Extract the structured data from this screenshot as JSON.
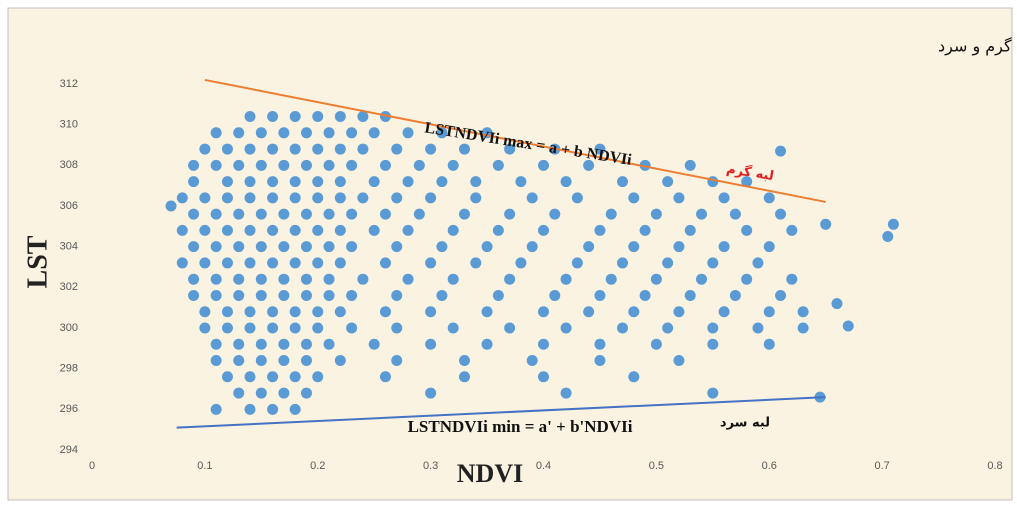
{
  "chart_data": {
    "type": "scatter",
    "title": "نمودار فرضی پراکندگی NDVI و LST برای بدست آوردن معادلات لبه گرم و سرد",
    "x_label": "NDVI",
    "y_label": "LST",
    "xlim": [
      0,
      0.8
    ],
    "xticks": [
      0,
      0.1,
      0.2,
      0.3,
      0.4,
      0.5,
      0.6,
      0.7,
      0.8
    ],
    "ylim": [
      294,
      312
    ],
    "yticks": [
      294,
      296,
      298,
      300,
      302,
      304,
      306,
      308,
      310,
      312
    ],
    "series": [
      {
        "color": "#5b9bd5",
        "x": [
          0.14,
          0.16,
          0.18,
          0.2,
          0.22,
          0.24,
          0.26,
          0.11,
          0.13,
          0.15,
          0.17,
          0.19,
          0.21,
          0.23,
          0.25,
          0.28,
          0.31,
          0.35,
          0.1,
          0.12,
          0.14,
          0.16,
          0.18,
          0.2,
          0.22,
          0.24,
          0.27,
          0.3,
          0.33,
          0.37,
          0.41,
          0.45,
          0.09,
          0.11,
          0.13,
          0.15,
          0.17,
          0.19,
          0.21,
          0.23,
          0.26,
          0.29,
          0.32,
          0.36,
          0.4,
          0.44,
          0.49,
          0.53,
          0.09,
          0.12,
          0.14,
          0.16,
          0.18,
          0.2,
          0.22,
          0.25,
          0.28,
          0.31,
          0.34,
          0.38,
          0.42,
          0.47,
          0.51,
          0.55,
          0.58,
          0.08,
          0.1,
          0.12,
          0.14,
          0.16,
          0.18,
          0.2,
          0.22,
          0.24,
          0.27,
          0.3,
          0.34,
          0.39,
          0.43,
          0.48,
          0.52,
          0.56,
          0.6,
          0.09,
          0.11,
          0.13,
          0.15,
          0.17,
          0.19,
          0.21,
          0.23,
          0.26,
          0.29,
          0.33,
          0.37,
          0.41,
          0.46,
          0.5,
          0.54,
          0.57,
          0.61,
          0.08,
          0.1,
          0.12,
          0.14,
          0.16,
          0.18,
          0.2,
          0.22,
          0.25,
          0.28,
          0.32,
          0.36,
          0.4,
          0.45,
          0.49,
          0.53,
          0.58,
          0.62,
          0.09,
          0.11,
          0.13,
          0.15,
          0.17,
          0.19,
          0.21,
          0.23,
          0.27,
          0.31,
          0.35,
          0.39,
          0.44,
          0.48,
          0.52,
          0.56,
          0.6,
          0.08,
          0.1,
          0.12,
          0.14,
          0.16,
          0.18,
          0.2,
          0.22,
          0.26,
          0.3,
          0.34,
          0.38,
          0.43,
          0.47,
          0.51,
          0.55,
          0.59,
          0.09,
          0.11,
          0.13,
          0.15,
          0.17,
          0.19,
          0.21,
          0.24,
          0.28,
          0.32,
          0.37,
          0.42,
          0.46,
          0.5,
          0.54,
          0.58,
          0.62,
          0.09,
          0.11,
          0.13,
          0.15,
          0.17,
          0.19,
          0.21,
          0.23,
          0.27,
          0.31,
          0.36,
          0.41,
          0.45,
          0.49,
          0.53,
          0.57,
          0.61,
          0.1,
          0.12,
          0.14,
          0.16,
          0.18,
          0.2,
          0.22,
          0.26,
          0.3,
          0.35,
          0.4,
          0.44,
          0.48,
          0.52,
          0.56,
          0.6,
          0.63,
          0.1,
          0.12,
          0.14,
          0.16,
          0.18,
          0.2,
          0.23,
          0.27,
          0.32,
          0.37,
          0.42,
          0.47,
          0.51,
          0.55,
          0.59,
          0.63,
          0.11,
          0.13,
          0.15,
          0.17,
          0.19,
          0.21,
          0.25,
          0.3,
          0.35,
          0.4,
          0.45,
          0.5,
          0.55,
          0.6,
          0.11,
          0.13,
          0.15,
          0.17,
          0.19,
          0.22,
          0.27,
          0.33,
          0.39,
          0.45,
          0.52,
          0.12,
          0.14,
          0.16,
          0.18,
          0.2,
          0.26,
          0.33,
          0.4,
          0.48,
          0.13,
          0.15,
          0.17,
          0.19,
          0.3,
          0.42,
          0.55,
          0.11,
          0.14,
          0.16,
          0.18,
          0.07,
          0.705,
          0.71,
          0.66,
          0.67,
          0.645,
          0.61,
          0.65
        ],
        "values": [
          310.4,
          310.4,
          310.4,
          310.4,
          310.4,
          310.4,
          310.4,
          309.6,
          309.6,
          309.6,
          309.6,
          309.6,
          309.6,
          309.6,
          309.6,
          309.6,
          309.6,
          309.6,
          308.8,
          308.8,
          308.8,
          308.8,
          308.8,
          308.8,
          308.8,
          308.8,
          308.8,
          308.8,
          308.8,
          308.8,
          308.8,
          308.8,
          308,
          308,
          308,
          308,
          308,
          308,
          308,
          308,
          308,
          308,
          308,
          308,
          308,
          308,
          308,
          308,
          307.2,
          307.2,
          307.2,
          307.2,
          307.2,
          307.2,
          307.2,
          307.2,
          307.2,
          307.2,
          307.2,
          307.2,
          307.2,
          307.2,
          307.2,
          307.2,
          307.2,
          306.4,
          306.4,
          306.4,
          306.4,
          306.4,
          306.4,
          306.4,
          306.4,
          306.4,
          306.4,
          306.4,
          306.4,
          306.4,
          306.4,
          306.4,
          306.4,
          306.4,
          306.4,
          305.6,
          305.6,
          305.6,
          305.6,
          305.6,
          305.6,
          305.6,
          305.6,
          305.6,
          305.6,
          305.6,
          305.6,
          305.6,
          305.6,
          305.6,
          305.6,
          305.6,
          305.6,
          304.8,
          304.8,
          304.8,
          304.8,
          304.8,
          304.8,
          304.8,
          304.8,
          304.8,
          304.8,
          304.8,
          304.8,
          304.8,
          304.8,
          304.8,
          304.8,
          304.8,
          304.8,
          304,
          304,
          304,
          304,
          304,
          304,
          304,
          304,
          304,
          304,
          304,
          304,
          304,
          304,
          304,
          304,
          304,
          303.2,
          303.2,
          303.2,
          303.2,
          303.2,
          303.2,
          303.2,
          303.2,
          303.2,
          303.2,
          303.2,
          303.2,
          303.2,
          303.2,
          303.2,
          303.2,
          303.2,
          302.4,
          302.4,
          302.4,
          302.4,
          302.4,
          302.4,
          302.4,
          302.4,
          302.4,
          302.4,
          302.4,
          302.4,
          302.4,
          302.4,
          302.4,
          302.4,
          302.4,
          301.6,
          301.6,
          301.6,
          301.6,
          301.6,
          301.6,
          301.6,
          301.6,
          301.6,
          301.6,
          301.6,
          301.6,
          301.6,
          301.6,
          301.6,
          301.6,
          301.6,
          300.8,
          300.8,
          300.8,
          300.8,
          300.8,
          300.8,
          300.8,
          300.8,
          300.8,
          300.8,
          300.8,
          300.8,
          300.8,
          300.8,
          300.8,
          300.8,
          300.8,
          300,
          300,
          300,
          300,
          300,
          300,
          300,
          300,
          300,
          300,
          300,
          300,
          300,
          300,
          300,
          300,
          299.2,
          299.2,
          299.2,
          299.2,
          299.2,
          299.2,
          299.2,
          299.2,
          299.2,
          299.2,
          299.2,
          299.2,
          299.2,
          299.2,
          298.4,
          298.4,
          298.4,
          298.4,
          298.4,
          298.4,
          298.4,
          298.4,
          298.4,
          298.4,
          298.4,
          297.6,
          297.6,
          297.6,
          297.6,
          297.6,
          297.6,
          297.6,
          297.6,
          297.6,
          296.8,
          296.8,
          296.8,
          296.8,
          296.8,
          296.8,
          296.8,
          296,
          296,
          296,
          296,
          306,
          304.5,
          305.1,
          301.2,
          300.1,
          296.6,
          308.7,
          305.1
        ]
      }
    ],
    "lines": [
      {
        "color": "#ed7d31",
        "x": [
          0.1,
          0.65
        ],
        "values": [
          312.2,
          306.2
        ]
      },
      {
        "color": "#4472c4",
        "x": [
          0.075,
          0.65
        ],
        "values": [
          295.1,
          296.6
        ]
      }
    ],
    "annotations": [
      {
        "text": "LSTNDVIi max = a + b NDVIi",
        "color": "#111111"
      },
      {
        "text": "لبه گرم",
        "color": "#e02020"
      },
      {
        "text": "LSTNDVIi min = a' + b'NDVIi",
        "color": "#111111"
      },
      {
        "text": "لبه سرد",
        "color": "#111111"
      }
    ]
  }
}
